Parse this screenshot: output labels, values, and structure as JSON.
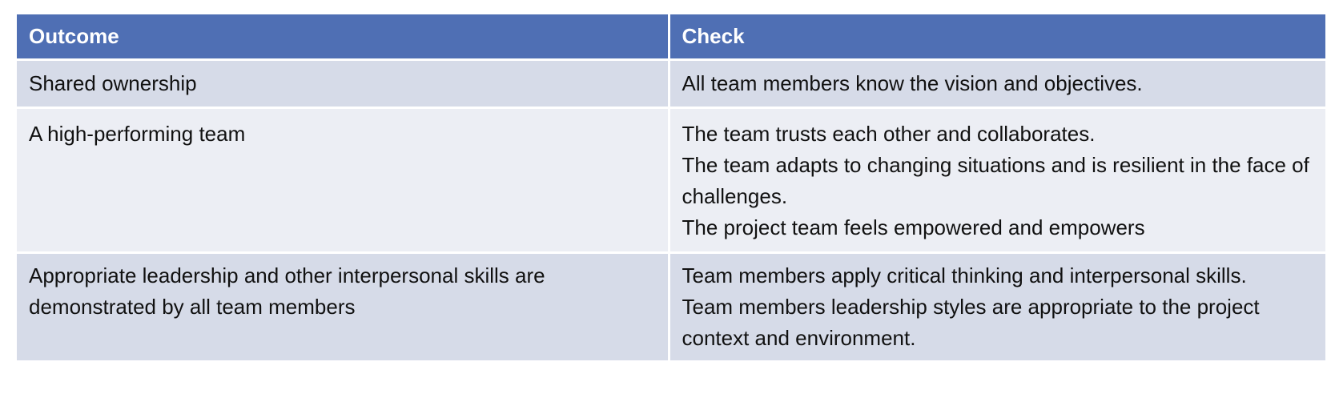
{
  "table": {
    "headers": [
      "Outcome",
      "Check"
    ],
    "rows": [
      {
        "outcome": "Shared ownership",
        "checks": [
          "All team members know the vision and objectives."
        ]
      },
      {
        "outcome": "A high-performing team",
        "checks": [
          "The team trusts each other and collaborates.",
          "The team adapts to changing situations and is resilient in the face of challenges.",
          "The project team feels empowered and empowers"
        ]
      },
      {
        "outcome": "Appropriate leadership and other interpersonal skills are demonstrated by all team members",
        "checks": [
          "Team members apply critical thinking and interpersonal skills.",
          "Team members leadership styles are appropriate to the project context and environment."
        ]
      }
    ]
  },
  "colors": {
    "header_bg": "#4f6fb4",
    "row_band_dark": "#d6dbe8",
    "row_band_light": "#eceef4"
  }
}
